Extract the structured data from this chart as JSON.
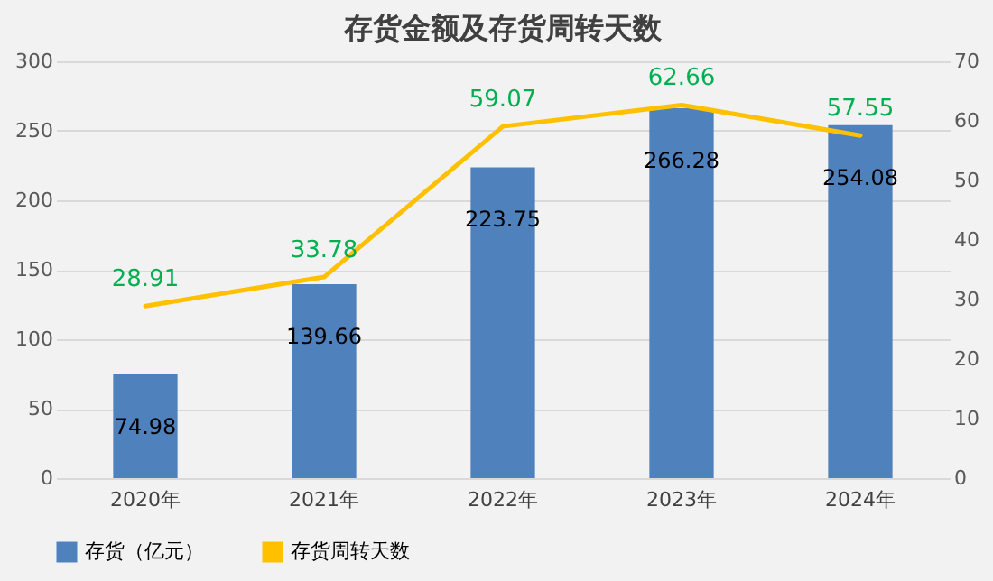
{
  "chart_data": {
    "type": "bar",
    "title": "存货金额及存货周转天数",
    "categories": [
      "2020年",
      "2021年",
      "2022年",
      "2023年",
      "2024年"
    ],
    "series": [
      {
        "name": "存货（亿元）",
        "color": "#4f81bd",
        "values": [
          74.98,
          139.66,
          223.75,
          266.28,
          254.08
        ]
      },
      {
        "name": "存货周转天数",
        "type": "line",
        "axis": "y2",
        "color": "#ffc000",
        "values": [
          28.91,
          33.78,
          59.07,
          62.66,
          57.55
        ]
      }
    ],
    "ylim": [
      0,
      300
    ],
    "yticks": [
      0,
      50,
      100,
      150,
      200,
      250,
      300
    ],
    "y2lim": [
      0,
      70
    ],
    "y2ticks": [
      0,
      10,
      20,
      30,
      40,
      50,
      60,
      70
    ],
    "grid": "y",
    "legend": "bottom",
    "data_labels": true,
    "marker": "none",
    "line_style": "solid"
  }
}
